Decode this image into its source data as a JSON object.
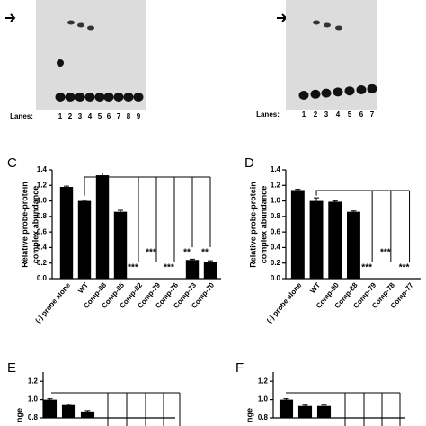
{
  "gels": [
    {
      "lanes_label": "Lanes:",
      "lanes": [
        "1",
        "2",
        "3",
        "4",
        "5",
        "6",
        "7",
        "8",
        "9"
      ]
    },
    {
      "lanes_label": "Lanes:",
      "lanes": [
        "1",
        "2",
        "3",
        "4",
        "5",
        "6",
        "7"
      ]
    }
  ],
  "chart_data": [
    {
      "type": "bar",
      "panel": "C",
      "ylabel": [
        "Relative probe-protein",
        "complex abundance"
      ],
      "categories": [
        "(-) probe alone",
        "WT",
        "Comp-88",
        "Comp-85",
        "Comp-82",
        "Comp-79",
        "Comp-76",
        "Comp-73",
        "Comp-70"
      ],
      "values": [
        1.18,
        1.0,
        1.33,
        0.86,
        0,
        0,
        0,
        0.24,
        0.22
      ],
      "errors": [
        0.01,
        0.01,
        0.03,
        0.02,
        0,
        0,
        0,
        0.01,
        0.01
      ],
      "significance": [
        null,
        null,
        null,
        null,
        "***",
        "***",
        "***",
        "**",
        "**"
      ],
      "color": "#000000",
      "ylim": [
        0,
        1.4
      ],
      "yticks": [
        {
          "value": 0,
          "label": "0.0"
        },
        {
          "value": 0.2,
          "label": "0.2"
        },
        {
          "value": 0.4,
          "label": "0.4"
        },
        {
          "value": 0.6,
          "label": "0.6"
        },
        {
          "value": 0.8,
          "label": "0.8"
        },
        {
          "value": 1,
          "label": "1.0"
        },
        {
          "value": 1.2,
          "label": "1.2"
        },
        {
          "value": 1.4,
          "label": "1.4"
        }
      ]
    },
    {
      "type": "bar",
      "panel": "D",
      "ylabel": [
        "Relative probe-protein",
        "complex abundance"
      ],
      "categories": [
        "(-) probe alone",
        "WT",
        "Comp-90",
        "Comp-88",
        "Comp-79",
        "Comp-78",
        "Comp-77"
      ],
      "values": [
        1.14,
        1.0,
        0.99,
        0.86,
        0,
        0,
        0
      ],
      "errors": [
        0.01,
        0.04,
        0.01,
        0.01,
        0,
        0,
        0
      ],
      "significance": [
        null,
        null,
        null,
        null,
        "***",
        "***",
        "***"
      ],
      "color": "#000000",
      "ylim": [
        0,
        1.4
      ],
      "yticks": [
        {
          "value": 0,
          "label": "0.0"
        },
        {
          "value": 0.2,
          "label": "0.2"
        },
        {
          "value": 0.4,
          "label": "0.4"
        },
        {
          "value": 0.6,
          "label": "0.6"
        },
        {
          "value": 0.8,
          "label": "0.8"
        },
        {
          "value": 1,
          "label": "1.0"
        },
        {
          "value": 1.2,
          "label": "1.2"
        },
        {
          "value": 1.4,
          "label": "1.4"
        }
      ]
    },
    {
      "type": "bar",
      "panel": "E",
      "ylabel": [
        "nge"
      ],
      "values": [
        1.0,
        0.94,
        0.87
      ],
      "errors": [
        0.01,
        0.01,
        0.01
      ],
      "color": "#000000",
      "ylim": [
        0.8,
        1.3
      ],
      "yticks": [
        {
          "value": 0.8,
          "label": "0.8"
        },
        {
          "value": 1,
          "label": "1.0"
        },
        {
          "value": 1.2,
          "label": "1.2"
        }
      ]
    },
    {
      "type": "bar",
      "panel": "F",
      "ylabel": [
        "nge"
      ],
      "values": [
        1.0,
        0.93,
        0.93
      ],
      "errors": [
        0.01,
        0.01,
        0.01
      ],
      "color": "#000000",
      "ylim": [
        0.8,
        1.3
      ],
      "yticks": [
        {
          "value": 0.8,
          "label": "0.8"
        },
        {
          "value": 1,
          "label": "1.0"
        },
        {
          "value": 1.2,
          "label": "1.2"
        }
      ]
    }
  ]
}
